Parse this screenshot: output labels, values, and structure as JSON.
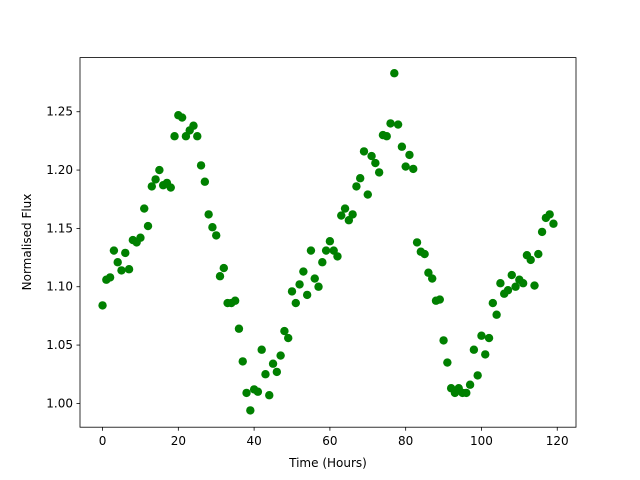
{
  "chart_data": {
    "type": "scatter",
    "x_label": "Time (Hours)",
    "y_label": "Normalised Flux",
    "x": [
      0,
      1,
      2,
      3,
      4,
      5,
      6,
      7,
      8,
      9,
      10,
      11,
      12,
      13,
      14,
      15,
      16,
      17,
      18,
      19,
      20,
      21,
      22,
      23,
      24,
      25,
      26,
      27,
      28,
      29,
      30,
      31,
      32,
      33,
      34,
      35,
      36,
      37,
      38,
      39,
      40,
      41,
      42,
      43,
      44,
      45,
      46,
      47,
      48,
      49,
      50,
      51,
      52,
      53,
      54,
      55,
      56,
      57,
      58,
      59,
      60,
      61,
      62,
      63,
      64,
      65,
      66,
      67,
      68,
      69,
      70,
      71,
      72,
      73,
      74,
      75,
      76,
      77,
      78,
      79,
      80,
      81,
      82,
      83,
      84,
      85,
      86,
      87,
      88,
      89,
      90,
      91,
      92,
      93,
      94,
      95,
      96,
      97,
      98,
      99,
      100,
      101,
      102,
      103,
      104,
      105,
      106,
      107,
      108,
      109,
      110,
      111,
      112,
      113,
      114,
      115,
      116,
      117,
      118,
      119
    ],
    "values": [
      1.084,
      1.106,
      1.108,
      1.131,
      1.121,
      1.114,
      1.129,
      1.115,
      1.14,
      1.138,
      1.142,
      1.167,
      1.152,
      1.186,
      1.192,
      1.2,
      1.187,
      1.189,
      1.185,
      1.229,
      1.247,
      1.245,
      1.229,
      1.234,
      1.238,
      1.229,
      1.204,
      1.19,
      1.162,
      1.151,
      1.144,
      1.109,
      1.116,
      1.086,
      1.086,
      1.088,
      1.064,
      1.036,
      1.009,
      0.994,
      1.012,
      1.01,
      1.046,
      1.025,
      1.007,
      1.034,
      1.027,
      1.041,
      1.062,
      1.056,
      1.096,
      1.086,
      1.102,
      1.113,
      1.093,
      1.131,
      1.107,
      1.1,
      1.121,
      1.131,
      1.139,
      1.131,
      1.126,
      1.161,
      1.167,
      1.157,
      1.162,
      1.186,
      1.193,
      1.216,
      1.179,
      1.212,
      1.206,
      1.198,
      1.23,
      1.229,
      1.24,
      1.283,
      1.239,
      1.22,
      1.203,
      1.213,
      1.201,
      1.138,
      1.13,
      1.128,
      1.112,
      1.107,
      1.088,
      1.089,
      1.054,
      1.035,
      1.013,
      1.009,
      1.013,
      1.009,
      1.009,
      1.016,
      1.046,
      1.024,
      1.058,
      1.042,
      1.056,
      1.086,
      1.076,
      1.103,
      1.094,
      1.097,
      1.11,
      1.1,
      1.106,
      1.103,
      1.127,
      1.123,
      1.101,
      1.128,
      1.147,
      1.159,
      1.162,
      1.154
    ],
    "color": "#008000",
    "xlim": [
      -5.95,
      124.95
    ],
    "xticks": [
      0,
      20,
      40,
      60,
      80,
      100,
      120
    ],
    "ylim": [
      0.9796,
      1.2964
    ],
    "yticks": [
      {
        "value": 1.0,
        "label": "1.00"
      },
      1.05,
      {
        "value": 1.1,
        "label": "1.10"
      },
      1.15,
      {
        "value": 1.2,
        "label": "1.20"
      },
      1.25
    ]
  }
}
